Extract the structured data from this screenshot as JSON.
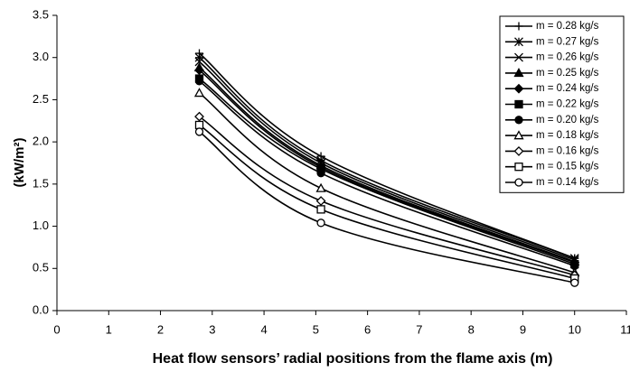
{
  "chart_data": {
    "type": "line",
    "y_label": "(kW/m²)",
    "x_label": "Heat flow sensors’ radial positions from the flame axis (m)",
    "x": [
      2.75,
      5.1,
      10
    ],
    "xlim": [
      0,
      11
    ],
    "xticks": [
      0,
      1,
      2,
      3,
      4,
      5,
      6,
      7,
      8,
      9,
      10,
      11
    ],
    "ylim": [
      0,
      3.5
    ],
    "yticks": [
      {
        "value": 0,
        "label": "0.0"
      },
      {
        "value": 0.5,
        "label": "0.5"
      },
      {
        "value": 1,
        "label": "1.0"
      },
      {
        "value": 1.5,
        "label": "1.5"
      },
      {
        "value": 2,
        "label": "2.0"
      },
      {
        "value": 2.5,
        "label": "2.5"
      },
      {
        "value": 3,
        "label": "3.0"
      },
      {
        "value": 3.5,
        "label": "3.5"
      }
    ],
    "legend": "top-right",
    "series": [
      {
        "name": "m = 0.28 kg/s",
        "color": "#000000",
        "marker": "plus",
        "values": [
          3.05,
          1.83,
          0.62
        ]
      },
      {
        "name": "m = 0.27 kg/s",
        "color": "#000000",
        "marker": "star",
        "values": [
          3.0,
          1.78,
          0.62
        ]
      },
      {
        "name": "m = 0.26 kg/s",
        "color": "#000000",
        "marker": "cross",
        "values": [
          2.95,
          1.75,
          0.6
        ]
      },
      {
        "name": "m = 0.25 kg/s",
        "color": "#000000",
        "marker": "triangle-filled",
        "values": [
          2.88,
          1.72,
          0.58
        ]
      },
      {
        "name": "m = 0.24 kg/s",
        "color": "#000000",
        "marker": "diamond-filled",
        "values": [
          2.85,
          1.7,
          0.57
        ]
      },
      {
        "name": "m = 0.22 kg/s",
        "color": "#000000",
        "marker": "square-filled",
        "values": [
          2.75,
          1.68,
          0.55
        ]
      },
      {
        "name": "m = 0.20 kg/s",
        "color": "#000000",
        "marker": "circle-filled",
        "values": [
          2.72,
          1.63,
          0.53
        ]
      },
      {
        "name": "m = 0.18 kg/s",
        "color": "#000000",
        "marker": "triangle-open",
        "values": [
          2.58,
          1.45,
          0.45
        ]
      },
      {
        "name": "m = 0.16 kg/s",
        "color": "#000000",
        "marker": "diamond-open",
        "values": [
          2.3,
          1.3,
          0.42
        ]
      },
      {
        "name": "m = 0.15 kg/s",
        "color": "#000000",
        "marker": "square-open",
        "values": [
          2.2,
          1.2,
          0.38
        ]
      },
      {
        "name": "m = 0.14 kg/s",
        "color": "#000000",
        "marker": "circle-open",
        "values": [
          2.12,
          1.04,
          0.33
        ]
      }
    ]
  }
}
